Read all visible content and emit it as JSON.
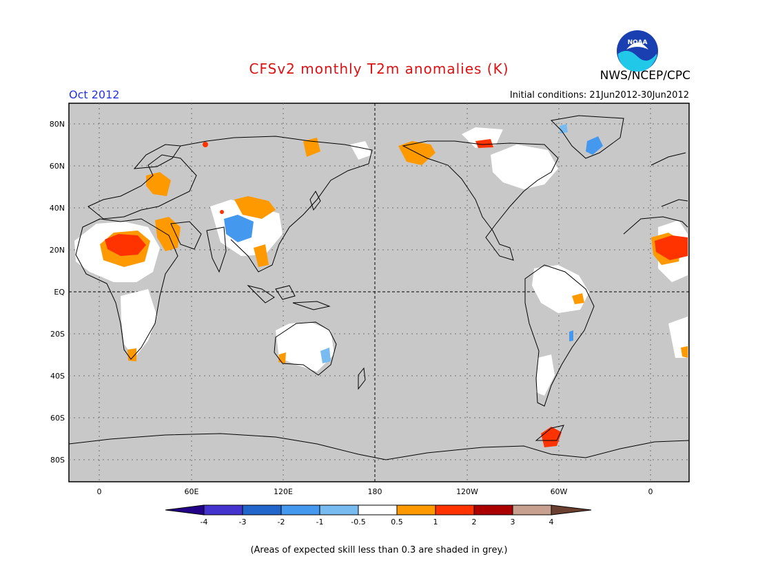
{
  "header": {
    "title": "CFSv2 monthly T2m anomalies (K)",
    "organization": "NWS/NCEP/CPC",
    "logo_text": "NOAA",
    "month": "Oct 2012",
    "initial_conditions": "Initial conditions: 21Jun2012-30Jun2012"
  },
  "map": {
    "lat_labels": [
      "80N",
      "60N",
      "40N",
      "20N",
      "EQ",
      "20S",
      "40S",
      "60S",
      "80S"
    ],
    "lon_labels": [
      "0",
      "60E",
      "120E",
      "180",
      "120W",
      "60W",
      "0"
    ],
    "land_color": "#c8c8c8",
    "ocean_color": "#c8c8c8"
  },
  "colorbar": {
    "tick_labels": [
      "-4",
      "-3",
      "-2",
      "-1",
      "-0.5",
      "0.5",
      "1",
      "2",
      "3",
      "4"
    ],
    "colors": [
      "#220088",
      "#4433cc",
      "#2266cc",
      "#4499ee",
      "#77bbf0",
      "#ffffff",
      "#ff9900",
      "#ff3300",
      "#aa0000",
      "#c8a090",
      "#6b4030"
    ]
  },
  "footnote": "(Areas of expected skill less than 0.3 are shaded in grey.)"
}
